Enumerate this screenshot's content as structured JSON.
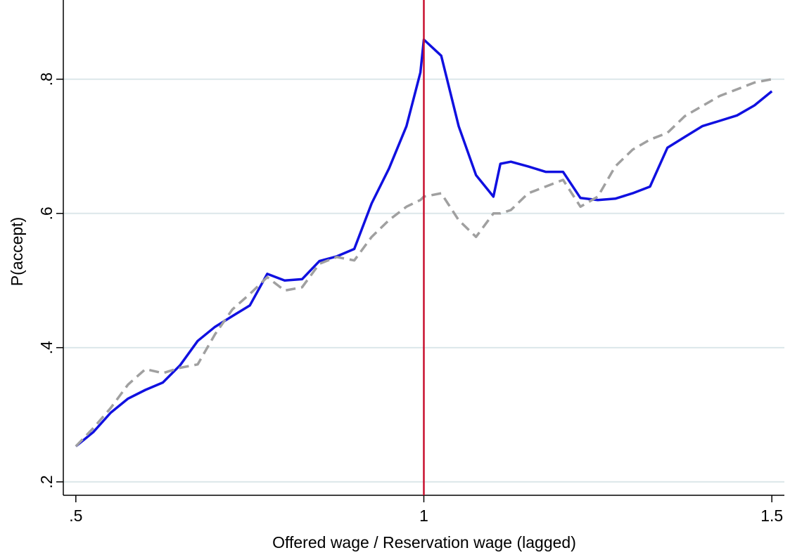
{
  "chart_data": {
    "type": "line",
    "xlabel": "Offered wage / Reservation wage (lagged)",
    "ylabel": "P(accept)",
    "x": [
      0.5,
      0.525,
      0.55,
      0.575,
      0.6,
      0.625,
      0.65,
      0.675,
      0.7,
      0.725,
      0.75,
      0.775,
      0.8,
      0.825,
      0.85,
      0.875,
      0.9,
      0.925,
      0.95,
      0.975,
      0.995,
      1.0,
      1.025,
      1.05,
      1.075,
      1.1,
      1.11,
      1.125,
      1.15,
      1.175,
      1.2,
      1.225,
      1.25,
      1.275,
      1.3,
      1.325,
      1.35,
      1.375,
      1.4,
      1.425,
      1.45,
      1.475,
      1.5
    ],
    "series": [
      {
        "color": "#1010e0",
        "dash": false,
        "values": [
          0.253,
          0.274,
          0.303,
          0.324,
          0.337,
          0.348,
          0.374,
          0.41,
          0.431,
          0.447,
          0.463,
          0.51,
          0.5,
          0.502,
          0.529,
          0.536,
          0.547,
          0.615,
          0.667,
          0.73,
          0.81,
          0.859,
          0.835,
          0.73,
          0.657,
          0.625,
          0.674,
          0.677,
          0.67,
          0.662,
          0.662,
          0.623,
          0.62,
          0.622,
          0.63,
          0.64,
          0.698,
          0.714,
          0.73,
          0.738,
          0.746,
          0.761,
          0.782
        ]
      },
      {
        "color": "#a0a0a0",
        "dash": true,
        "values": [
          0.253,
          0.28,
          0.31,
          0.345,
          0.368,
          0.362,
          0.37,
          0.375,
          0.42,
          0.457,
          0.48,
          0.505,
          0.485,
          0.49,
          0.525,
          0.535,
          0.53,
          0.565,
          0.59,
          0.61,
          0.62,
          0.625,
          0.63,
          0.59,
          0.565,
          0.6,
          0.6,
          0.605,
          0.63,
          0.64,
          0.65,
          0.61,
          0.625,
          0.67,
          0.695,
          0.71,
          0.72,
          0.745,
          0.76,
          0.775,
          0.785,
          0.795,
          0.8
        ]
      }
    ],
    "vline": {
      "value": 1,
      "color": "#c8102e"
    },
    "xlim": [
      0.482,
      1.518
    ],
    "ylim": [
      0.18,
      0.918
    ],
    "xticks": [
      {
        "value": 0.5,
        "label": ".5"
      },
      1,
      {
        "value": 1.5,
        "label": "1.5"
      }
    ],
    "yticks": [
      {
        "value": 0.2,
        "label": ".2"
      },
      {
        "value": 0.4,
        "label": ".4"
      },
      {
        "value": 0.6,
        "label": ".6"
      },
      {
        "value": 0.8,
        "label": ".8"
      }
    ],
    "grid": true
  }
}
